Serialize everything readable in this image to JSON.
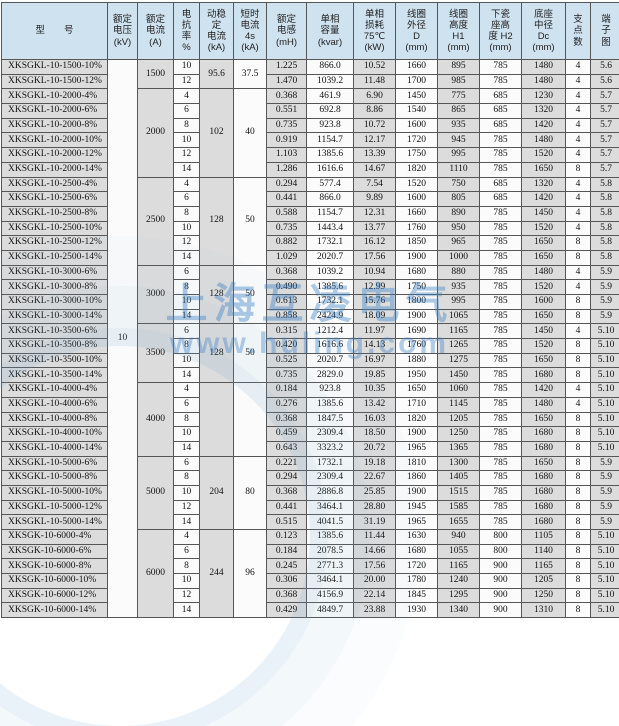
{
  "watermark": {
    "line1": "上海互凌电气",
    "line2": "www.huling.com"
  },
  "table": {
    "columns": [
      {
        "id": "model",
        "lines": [
          "型　　号"
        ]
      },
      {
        "id": "voltage",
        "lines": [
          "额定",
          "电压",
          "(kV)"
        ]
      },
      {
        "id": "rated-current",
        "lines": [
          "额定",
          "电流",
          "(A)"
        ]
      },
      {
        "id": "reactance",
        "lines": [
          "电",
          "抗",
          "率",
          "%"
        ]
      },
      {
        "id": "dynamic-current",
        "lines": [
          "动稳",
          "定",
          "电流",
          "(kA)"
        ]
      },
      {
        "id": "short-time-current",
        "lines": [
          "短时",
          "电流",
          "4s",
          "(kA)"
        ]
      },
      {
        "id": "inductance",
        "lines": [
          "额定",
          "电感",
          "(mH)"
        ]
      },
      {
        "id": "capacity",
        "lines": [
          "单相",
          "容量",
          "(kvar)"
        ]
      },
      {
        "id": "loss",
        "lines": [
          "单相",
          "损耗",
          "75℃",
          "(kW)"
        ]
      },
      {
        "id": "coil-od",
        "lines": [
          "线圈",
          "外径",
          "D",
          "(mm)"
        ]
      },
      {
        "id": "coil-h1",
        "lines": [
          "线圈",
          "高度",
          "H1",
          "(mm)"
        ]
      },
      {
        "id": "porcelain-h2",
        "lines": [
          "下瓷",
          "座高",
          "度 H2",
          "(mm)"
        ]
      },
      {
        "id": "base-dc",
        "lines": [
          "底座",
          "中径",
          "Dc",
          "(mm)"
        ]
      },
      {
        "id": "supports",
        "lines": [
          "支",
          "点",
          "数"
        ]
      },
      {
        "id": "terminal-diagram",
        "lines": [
          "端",
          "子",
          "图"
        ]
      }
    ],
    "voltage_kv": "10",
    "groups": [
      {
        "rated_current": "1500",
        "dynamic_current_ka": "95.6",
        "short_time_current_ka": "37.5",
        "rows": [
          {
            "model": "XKSGKL-10-1500-10%",
            "reactance_pct": "10",
            "inductance_mh": "1.225",
            "capacity_kvar": "866.0",
            "loss_kw": "10.52",
            "coil_od_mm": "1660",
            "coil_h1_mm": "895",
            "porcelain_h2_mm": "785",
            "base_dc_mm": "1480",
            "supports": "4",
            "terminal_diagram": "5.6"
          },
          {
            "model": "XKSGKL-10-1500-12%",
            "reactance_pct": "12",
            "inductance_mh": "1.470",
            "capacity_kvar": "1039.2",
            "loss_kw": "11.48",
            "coil_od_mm": "1700",
            "coil_h1_mm": "985",
            "porcelain_h2_mm": "785",
            "base_dc_mm": "1480",
            "supports": "4",
            "terminal_diagram": "5.6"
          }
        ]
      },
      {
        "rated_current": "2000",
        "dynamic_current_ka": "102",
        "short_time_current_ka": "40",
        "rows": [
          {
            "model": "XKSGKL-10-2000-4%",
            "reactance_pct": "4",
            "inductance_mh": "0.368",
            "capacity_kvar": "461.9",
            "loss_kw": "6.90",
            "coil_od_mm": "1450",
            "coil_h1_mm": "775",
            "porcelain_h2_mm": "685",
            "base_dc_mm": "1230",
            "supports": "4",
            "terminal_diagram": "5.7"
          },
          {
            "model": "XKSGKL-10-2000-6%",
            "reactance_pct": "6",
            "inductance_mh": "0.551",
            "capacity_kvar": "692.8",
            "loss_kw": "8.86",
            "coil_od_mm": "1540",
            "coil_h1_mm": "865",
            "porcelain_h2_mm": "685",
            "base_dc_mm": "1320",
            "supports": "4",
            "terminal_diagram": "5.7"
          },
          {
            "model": "XKSGKL-10-2000-8%",
            "reactance_pct": "8",
            "inductance_mh": "0.735",
            "capacity_kvar": "923.8",
            "loss_kw": "10.72",
            "coil_od_mm": "1600",
            "coil_h1_mm": "935",
            "porcelain_h2_mm": "685",
            "base_dc_mm": "1420",
            "supports": "4",
            "terminal_diagram": "5.7"
          },
          {
            "model": "XKSGKL-10-2000-10%",
            "reactance_pct": "10",
            "inductance_mh": "0.919",
            "capacity_kvar": "1154.7",
            "loss_kw": "12.17",
            "coil_od_mm": "1720",
            "coil_h1_mm": "945",
            "porcelain_h2_mm": "785",
            "base_dc_mm": "1480",
            "supports": "4",
            "terminal_diagram": "5.7"
          },
          {
            "model": "XKSGKL-10-2000-12%",
            "reactance_pct": "12",
            "inductance_mh": "1.103",
            "capacity_kvar": "1385.6",
            "loss_kw": "13.39",
            "coil_od_mm": "1750",
            "coil_h1_mm": "995",
            "porcelain_h2_mm": "785",
            "base_dc_mm": "1520",
            "supports": "4",
            "terminal_diagram": "5.7"
          },
          {
            "model": "XKSGKL-10-2000-14%",
            "reactance_pct": "14",
            "inductance_mh": "1.286",
            "capacity_kvar": "1616.6",
            "loss_kw": "14.67",
            "coil_od_mm": "1820",
            "coil_h1_mm": "1110",
            "porcelain_h2_mm": "785",
            "base_dc_mm": "1650",
            "supports": "8",
            "terminal_diagram": "5.7"
          }
        ]
      },
      {
        "rated_current": "2500",
        "dynamic_current_ka": "128",
        "short_time_current_ka": "50",
        "rows": [
          {
            "model": "XKSGKL-10-2500-4%",
            "reactance_pct": "4",
            "inductance_mh": "0.294",
            "capacity_kvar": "577.4",
            "loss_kw": "7.54",
            "coil_od_mm": "1520",
            "coil_h1_mm": "750",
            "porcelain_h2_mm": "685",
            "base_dc_mm": "1320",
            "supports": "4",
            "terminal_diagram": "5.8"
          },
          {
            "model": "XKSGKL-10-2500-6%",
            "reactance_pct": "6",
            "inductance_mh": "0.441",
            "capacity_kvar": "866.0",
            "loss_kw": "9.89",
            "coil_od_mm": "1600",
            "coil_h1_mm": "805",
            "porcelain_h2_mm": "685",
            "base_dc_mm": "1420",
            "supports": "4",
            "terminal_diagram": "5.8"
          },
          {
            "model": "XKSGKL-10-2500-8%",
            "reactance_pct": "8",
            "inductance_mh": "0.588",
            "capacity_kvar": "1154.7",
            "loss_kw": "12.31",
            "coil_od_mm": "1660",
            "coil_h1_mm": "890",
            "porcelain_h2_mm": "785",
            "base_dc_mm": "1450",
            "supports": "4",
            "terminal_diagram": "5.8"
          },
          {
            "model": "XKSGKL-10-2500-10%",
            "reactance_pct": "10",
            "inductance_mh": "0.735",
            "capacity_kvar": "1443.4",
            "loss_kw": "13.77",
            "coil_od_mm": "1760",
            "coil_h1_mm": "950",
            "porcelain_h2_mm": "785",
            "base_dc_mm": "1520",
            "supports": "4",
            "terminal_diagram": "5.8"
          },
          {
            "model": "XKSGKL-10-2500-12%",
            "reactance_pct": "12",
            "inductance_mh": "0.882",
            "capacity_kvar": "1732.1",
            "loss_kw": "16.12",
            "coil_od_mm": "1850",
            "coil_h1_mm": "965",
            "porcelain_h2_mm": "785",
            "base_dc_mm": "1650",
            "supports": "8",
            "terminal_diagram": "5.8"
          },
          {
            "model": "XKSGKL-10-2500-14%",
            "reactance_pct": "14",
            "inductance_mh": "1.029",
            "capacity_kvar": "2020.7",
            "loss_kw": "17.56",
            "coil_od_mm": "1900",
            "coil_h1_mm": "1000",
            "porcelain_h2_mm": "785",
            "base_dc_mm": "1650",
            "supports": "8",
            "terminal_diagram": "5.8"
          }
        ]
      },
      {
        "rated_current": "3000",
        "dynamic_current_ka": "128",
        "short_time_current_ka": "50",
        "rows": [
          {
            "model": "XKSGKL-10-3000-6%",
            "reactance_pct": "6",
            "inductance_mh": "0.368",
            "capacity_kvar": "1039.2",
            "loss_kw": "10.94",
            "coil_od_mm": "1680",
            "coil_h1_mm": "880",
            "porcelain_h2_mm": "785",
            "base_dc_mm": "1480",
            "supports": "4",
            "terminal_diagram": "5.9"
          },
          {
            "model": "XKSGKL-10-3000-8%",
            "reactance_pct": "8",
            "inductance_mh": "0.490",
            "capacity_kvar": "1385.6",
            "loss_kw": "12.99",
            "coil_od_mm": "1750",
            "coil_h1_mm": "935",
            "porcelain_h2_mm": "785",
            "base_dc_mm": "1520",
            "supports": "4",
            "terminal_diagram": "5.9"
          },
          {
            "model": "XKSGKL-10-3000-10%",
            "reactance_pct": "10",
            "inductance_mh": "0.613",
            "capacity_kvar": "1732.1",
            "loss_kw": "15.76",
            "coil_od_mm": "1800",
            "coil_h1_mm": "995",
            "porcelain_h2_mm": "785",
            "base_dc_mm": "1600",
            "supports": "8",
            "terminal_diagram": "5.9"
          },
          {
            "model": "XKSGKL-10-3000-14%",
            "reactance_pct": "14",
            "inductance_mh": "0.858",
            "capacity_kvar": "2424.9",
            "loss_kw": "18.09",
            "coil_od_mm": "1900",
            "coil_h1_mm": "1065",
            "porcelain_h2_mm": "785",
            "base_dc_mm": "1650",
            "supports": "8",
            "terminal_diagram": "5.9"
          }
        ]
      },
      {
        "rated_current": "3500",
        "dynamic_current_ka": "128",
        "short_time_current_ka": "50",
        "rows": [
          {
            "model": "XKSGKL-10-3500-6%",
            "reactance_pct": "6",
            "inductance_mh": "0.315",
            "capacity_kvar": "1212.4",
            "loss_kw": "11.97",
            "coil_od_mm": "1690",
            "coil_h1_mm": "1165",
            "porcelain_h2_mm": "785",
            "base_dc_mm": "1450",
            "supports": "4",
            "terminal_diagram": "5.10"
          },
          {
            "model": "XKSGKL-10-3500-8%",
            "reactance_pct": "8",
            "inductance_mh": "0.420",
            "capacity_kvar": "1616.6",
            "loss_kw": "14.13",
            "coil_od_mm": "1760",
            "coil_h1_mm": "1265",
            "porcelain_h2_mm": "785",
            "base_dc_mm": "1520",
            "supports": "8",
            "terminal_diagram": "5.10"
          },
          {
            "model": "XKSGKL-10-3500-10%",
            "reactance_pct": "10",
            "inductance_mh": "0.525",
            "capacity_kvar": "2020.7",
            "loss_kw": "16.97",
            "coil_od_mm": "1880",
            "coil_h1_mm": "1275",
            "porcelain_h2_mm": "785",
            "base_dc_mm": "1650",
            "supports": "8",
            "terminal_diagram": "5.10"
          },
          {
            "model": "XKSGKL-10-3500-14%",
            "reactance_pct": "14",
            "inductance_mh": "0.735",
            "capacity_kvar": "2829.0",
            "loss_kw": "19.85",
            "coil_od_mm": "1950",
            "coil_h1_mm": "1450",
            "porcelain_h2_mm": "785",
            "base_dc_mm": "1680",
            "supports": "8",
            "terminal_diagram": "5.10"
          }
        ]
      },
      {
        "rated_current": "4000",
        "dynamic_current_ka": "",
        "short_time_current_ka": "",
        "rows": [
          {
            "model": "XKSGKL-10-4000-4%",
            "reactance_pct": "4",
            "inductance_mh": "0.184",
            "capacity_kvar": "923.8",
            "loss_kw": "10.35",
            "coil_od_mm": "1650",
            "coil_h1_mm": "1060",
            "porcelain_h2_mm": "785",
            "base_dc_mm": "1420",
            "supports": "4",
            "terminal_diagram": "5.10"
          },
          {
            "model": "XKSGKL-10-4000-6%",
            "reactance_pct": "6",
            "inductance_mh": "0.276",
            "capacity_kvar": "1385.6",
            "loss_kw": "13.42",
            "coil_od_mm": "1710",
            "coil_h1_mm": "1145",
            "porcelain_h2_mm": "785",
            "base_dc_mm": "1480",
            "supports": "4",
            "terminal_diagram": "5.10"
          },
          {
            "model": "XKSGKL-10-4000-8%",
            "reactance_pct": "8",
            "inductance_mh": "0.368",
            "capacity_kvar": "1847.5",
            "loss_kw": "16.03",
            "coil_od_mm": "1820",
            "coil_h1_mm": "1205",
            "porcelain_h2_mm": "785",
            "base_dc_mm": "1650",
            "supports": "8",
            "terminal_diagram": "5.10"
          },
          {
            "model": "XKSGKL-10-4000-10%",
            "reactance_pct": "10",
            "inductance_mh": "0.459",
            "capacity_kvar": "2309.4",
            "loss_kw": "18.50",
            "coil_od_mm": "1900",
            "coil_h1_mm": "1250",
            "porcelain_h2_mm": "785",
            "base_dc_mm": "1680",
            "supports": "8",
            "terminal_diagram": "5.10"
          },
          {
            "model": "XKSGKL-10-4000-14%",
            "reactance_pct": "14",
            "inductance_mh": "0.643",
            "capacity_kvar": "3323.2",
            "loss_kw": "20.72",
            "coil_od_mm": "1965",
            "coil_h1_mm": "1365",
            "porcelain_h2_mm": "785",
            "base_dc_mm": "1680",
            "supports": "8",
            "terminal_diagram": "5.10"
          }
        ]
      },
      {
        "rated_current": "5000",
        "dynamic_current_ka": "204",
        "short_time_current_ka": "80",
        "rows": [
          {
            "model": "XKSGKL-10-5000-6%",
            "reactance_pct": "6",
            "inductance_mh": "0.221",
            "capacity_kvar": "1732.1",
            "loss_kw": "19.18",
            "coil_od_mm": "1810",
            "coil_h1_mm": "1300",
            "porcelain_h2_mm": "785",
            "base_dc_mm": "1650",
            "supports": "8",
            "terminal_diagram": "5.9"
          },
          {
            "model": "XKSGKL-10-5000-8%",
            "reactance_pct": "8",
            "inductance_mh": "0.294",
            "capacity_kvar": "2309.4",
            "loss_kw": "22.67",
            "coil_od_mm": "1860",
            "coil_h1_mm": "1405",
            "porcelain_h2_mm": "785",
            "base_dc_mm": "1680",
            "supports": "8",
            "terminal_diagram": "5.9"
          },
          {
            "model": "XKSGKL-10-5000-10%",
            "reactance_pct": "10",
            "inductance_mh": "0.368",
            "capacity_kvar": "2886.8",
            "loss_kw": "25.85",
            "coil_od_mm": "1900",
            "coil_h1_mm": "1515",
            "porcelain_h2_mm": "785",
            "base_dc_mm": "1680",
            "supports": "8",
            "terminal_diagram": "5.9"
          },
          {
            "model": "XKSGKL-10-5000-12%",
            "reactance_pct": "12",
            "inductance_mh": "0.441",
            "capacity_kvar": "3464.1",
            "loss_kw": "28.80",
            "coil_od_mm": "1945",
            "coil_h1_mm": "1585",
            "porcelain_h2_mm": "785",
            "base_dc_mm": "1680",
            "supports": "8",
            "terminal_diagram": "5.9"
          },
          {
            "model": "XKSGKL-10-5000-14%",
            "reactance_pct": "14",
            "inductance_mh": "0.515",
            "capacity_kvar": "4041.5",
            "loss_kw": "31.19",
            "coil_od_mm": "1965",
            "coil_h1_mm": "1655",
            "porcelain_h2_mm": "785",
            "base_dc_mm": "1680",
            "supports": "8",
            "terminal_diagram": "5.9"
          }
        ]
      },
      {
        "rated_current": "6000",
        "dynamic_current_ka": "244",
        "short_time_current_ka": "96",
        "rows": [
          {
            "model": "XKSGK-10-6000-4%",
            "reactance_pct": "4",
            "inductance_mh": "0.123",
            "capacity_kvar": "1385.6",
            "loss_kw": "11.44",
            "coil_od_mm": "1630",
            "coil_h1_mm": "940",
            "porcelain_h2_mm": "800",
            "base_dc_mm": "1105",
            "supports": "8",
            "terminal_diagram": "5.10"
          },
          {
            "model": "XKSGK-10-6000-6%",
            "reactance_pct": "6",
            "inductance_mh": "0.184",
            "capacity_kvar": "2078.5",
            "loss_kw": "14.66",
            "coil_od_mm": "1680",
            "coil_h1_mm": "1055",
            "porcelain_h2_mm": "800",
            "base_dc_mm": "1140",
            "supports": "8",
            "terminal_diagram": "5.10"
          },
          {
            "model": "XKSGK-10-6000-8%",
            "reactance_pct": "8",
            "inductance_mh": "0.245",
            "capacity_kvar": "2771.3",
            "loss_kw": "17.56",
            "coil_od_mm": "1720",
            "coil_h1_mm": "1165",
            "porcelain_h2_mm": "900",
            "base_dc_mm": "1165",
            "supports": "8",
            "terminal_diagram": "5.10"
          },
          {
            "model": "XKSGK-10-6000-10%",
            "reactance_pct": "10",
            "inductance_mh": "0.306",
            "capacity_kvar": "3464.1",
            "loss_kw": "20.00",
            "coil_od_mm": "1780",
            "coil_h1_mm": "1240",
            "porcelain_h2_mm": "900",
            "base_dc_mm": "1205",
            "supports": "8",
            "terminal_diagram": "5.10"
          },
          {
            "model": "XKSGK-10-6000-12%",
            "reactance_pct": "12",
            "inductance_mh": "0.368",
            "capacity_kvar": "4156.9",
            "loss_kw": "22.14",
            "coil_od_mm": "1845",
            "coil_h1_mm": "1295",
            "porcelain_h2_mm": "900",
            "base_dc_mm": "1250",
            "supports": "8",
            "terminal_diagram": "5.10"
          },
          {
            "model": "XKSGK-10-6000-14%",
            "reactance_pct": "14",
            "inductance_mh": "0.429",
            "capacity_kvar": "4849.7",
            "loss_kw": "23.88",
            "coil_od_mm": "1930",
            "coil_h1_mm": "1340",
            "porcelain_h2_mm": "900",
            "base_dc_mm": "1310",
            "supports": "8",
            "terminal_diagram": "5.10"
          }
        ]
      }
    ]
  }
}
